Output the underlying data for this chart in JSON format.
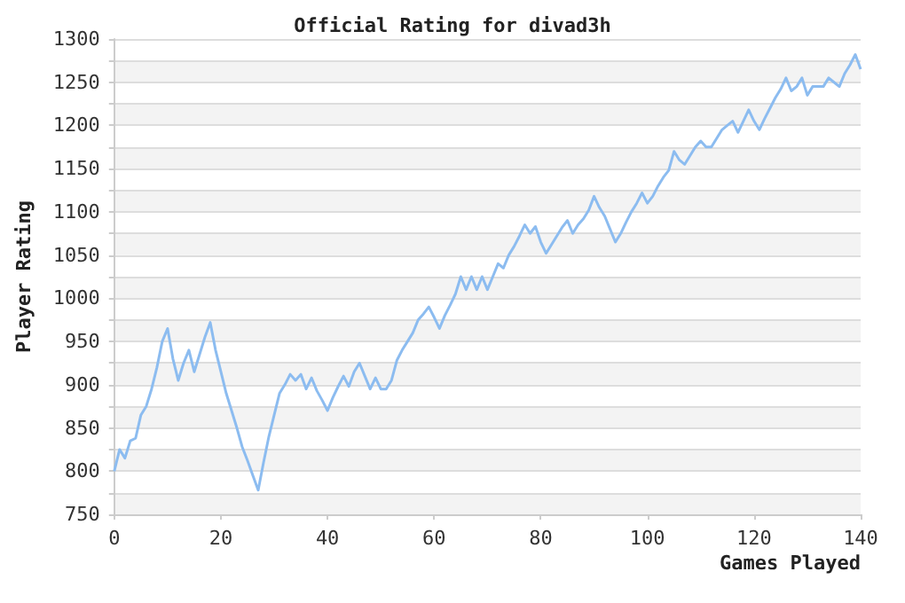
{
  "chart_data": {
    "type": "line",
    "title": "Official Rating for divad3h",
    "xlabel": "Games Played",
    "ylabel": "Player Rating",
    "x": [
      0,
      1,
      2,
      3,
      4,
      5,
      6,
      7,
      8,
      9,
      10,
      11,
      12,
      13,
      14,
      15,
      16,
      17,
      18,
      19,
      20,
      21,
      22,
      23,
      24,
      25,
      26,
      27,
      28,
      29,
      30,
      31,
      32,
      33,
      34,
      35,
      36,
      37,
      38,
      39,
      40,
      41,
      42,
      43,
      44,
      45,
      46,
      47,
      48,
      49,
      50,
      51,
      52,
      53,
      54,
      55,
      56,
      57,
      58,
      59,
      60,
      61,
      62,
      63,
      64,
      65,
      66,
      67,
      68,
      69,
      70,
      71,
      72,
      73,
      74,
      75,
      76,
      77,
      78,
      79,
      80,
      81,
      82,
      83,
      84,
      85,
      86,
      87,
      88,
      89,
      90,
      91,
      92,
      93,
      94,
      95,
      96,
      97,
      98,
      99,
      100,
      101,
      102,
      103,
      104,
      105,
      106,
      107,
      108,
      109,
      110,
      111,
      112,
      113,
      114,
      115,
      116,
      117,
      118,
      119,
      120,
      121,
      122,
      123,
      124,
      125,
      126,
      127,
      128,
      129,
      130,
      131,
      132,
      133,
      134,
      135,
      136,
      137,
      138,
      139,
      140
    ],
    "series": [
      {
        "color": "#8cbcf0",
        "values": [
          800,
          825,
          815,
          835,
          838,
          865,
          875,
          895,
          920,
          950,
          965,
          930,
          905,
          925,
          940,
          915,
          935,
          955,
          972,
          940,
          915,
          890,
          870,
          850,
          828,
          812,
          795,
          778,
          810,
          840,
          865,
          890,
          900,
          912,
          905,
          912,
          895,
          908,
          893,
          882,
          870,
          885,
          898,
          910,
          898,
          915,
          925,
          910,
          895,
          908,
          895,
          895,
          905,
          928,
          940,
          950,
          960,
          975,
          982,
          990,
          978,
          965,
          980,
          992,
          1005,
          1025,
          1010,
          1025,
          1010,
          1025,
          1010,
          1025,
          1040,
          1035,
          1050,
          1060,
          1072,
          1085,
          1075,
          1083,
          1065,
          1052,
          1062,
          1072,
          1082,
          1090,
          1075,
          1085,
          1092,
          1102,
          1118,
          1105,
          1095,
          1080,
          1065,
          1075,
          1088,
          1100,
          1110,
          1122,
          1110,
          1118,
          1130,
          1140,
          1148,
          1170,
          1160,
          1155,
          1165,
          1175,
          1182,
          1175,
          1175,
          1185,
          1195,
          1200,
          1205,
          1192,
          1205,
          1218,
          1205,
          1195,
          1208,
          1220,
          1232,
          1242,
          1255,
          1240,
          1245,
          1255,
          1235,
          1245,
          1245,
          1245,
          1255,
          1250,
          1245,
          1260,
          1270,
          1282,
          1265
        ]
      }
    ],
    "xlim": [
      0,
      140
    ],
    "xticks": [
      0,
      20,
      40,
      60,
      80,
      100,
      120,
      140
    ],
    "ylim": [
      750,
      1300
    ],
    "yticks": [
      750,
      {
        "value": 775,
        "label": null
      },
      800,
      {
        "value": 825,
        "label": null
      },
      850,
      {
        "value": 875,
        "label": null
      },
      900,
      {
        "value": 925,
        "label": null
      },
      950,
      {
        "value": 975,
        "label": null
      },
      1000,
      {
        "value": 1025,
        "label": null
      },
      1050,
      {
        "value": 1075,
        "label": null
      },
      1100,
      {
        "value": 1125,
        "label": null
      },
      1150,
      {
        "value": 1175,
        "label": null
      },
      1200,
      {
        "value": 1225,
        "label": null
      },
      1250,
      {
        "value": 1275,
        "label": null
      },
      1300
    ],
    "grid": "y",
    "marker": "none",
    "line_style": "solid"
  }
}
